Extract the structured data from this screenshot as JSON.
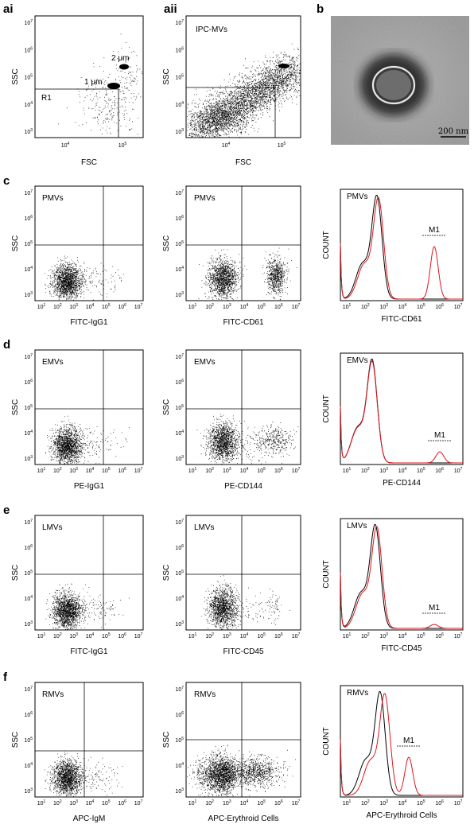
{
  "panels": {
    "ai": {
      "label": "ai",
      "xlabel": "FSC",
      "ylabel": "SSC",
      "gate_label": "R1",
      "annotations": [
        "1 μm",
        "2 μm"
      ]
    },
    "aii": {
      "label": "aii",
      "xlabel": "FSC",
      "ylabel": "SSC",
      "title": "IPC-MVs"
    },
    "b": {
      "label": "b",
      "scale_bar": "200 nm"
    },
    "c": {
      "label": "c",
      "population": "PMVs",
      "ylabel": "SSC",
      "iso_xlabel": "FITC-IgG1",
      "marker_xlabel": "FITC-CD61",
      "hist_ylabel": "COUNT",
      "gate": "M1"
    },
    "d": {
      "label": "d",
      "population": "EMVs",
      "ylabel": "SSC",
      "iso_xlabel": "PE-IgG1",
      "marker_xlabel": "PE-CD144",
      "hist_ylabel": "COUNT",
      "gate": "M1"
    },
    "e": {
      "label": "e",
      "population": "LMVs",
      "ylabel": "SSC",
      "iso_xlabel": "FITC-IgG1",
      "marker_xlabel": "FITC-CD45",
      "hist_ylabel": "COUNT",
      "gate": "M1"
    },
    "f": {
      "label": "f",
      "population": "RMVs",
      "ylabel": "SSC",
      "iso_xlabel": "APC-IgM",
      "marker_xlabel": "APC-Erythroid Cells",
      "hist_ylabel": "COUNT",
      "gate": "M1"
    }
  },
  "ticks": {
    "y": [
      {
        "base": "10",
        "exp": "7"
      },
      {
        "base": "10",
        "exp": "6"
      },
      {
        "base": "10",
        "exp": "5"
      },
      {
        "base": "10",
        "exp": "4"
      },
      {
        "base": "10",
        "exp": "3"
      }
    ],
    "x_short": [
      {
        "base": "10",
        "exp": "4"
      },
      {
        "base": "10",
        "exp": "5"
      }
    ],
    "x_log": [
      {
        "base": "10",
        "exp": "1"
      },
      {
        "base": "10",
        "exp": "2"
      },
      {
        "base": "10",
        "exp": "3"
      },
      {
        "base": "10",
        "exp": "4"
      },
      {
        "base": "10",
        "exp": "5"
      },
      {
        "base": "10",
        "exp": "6"
      },
      {
        "base": "10",
        "exp": "7"
      }
    ]
  },
  "colors": {
    "isotype_line": "#000000",
    "marker_line": "#e0141e",
    "dots": "#000000",
    "em_background": "#9a9a9a"
  }
}
